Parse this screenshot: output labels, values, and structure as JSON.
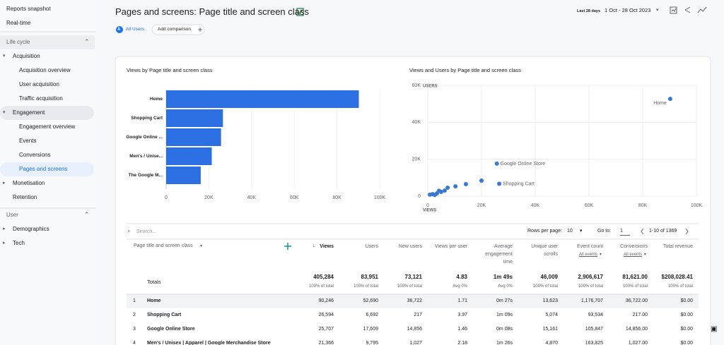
{
  "sidebar": {
    "items": [
      "Reports snapshot",
      "Real-time",
      "Life cycle",
      "Acquisition",
      "Acquisition overview",
      "User acquisition",
      "Traffic acquisition",
      "Engagement",
      "Engagement overview",
      "Events",
      "Conversions",
      "Pages and screens",
      "Monetisation",
      "Retention",
      "User",
      "Demographics",
      "Tech"
    ]
  },
  "header": {
    "title": "Pages and screens: Page title and screen class",
    "range_label": "Last 28 days",
    "range": "1 Oct - 28 Oct 2023",
    "segment_avatar": "A",
    "segment": "All Users",
    "add_comparison": "Add comparison"
  },
  "chart_data": [
    {
      "type": "bar",
      "title": "Views by Page title and screen class",
      "categories": [
        "Home",
        "Shopping Cart",
        "Google Online ...",
        "Men's / Unise...",
        "The Google M..."
      ],
      "values": [
        90246,
        26594,
        25707,
        21366,
        16200
      ],
      "color": "#2b6fe3",
      "xlim": [
        0,
        100000
      ],
      "xticks": [
        0,
        {
          "value": 20000,
          "label": "20K"
        },
        {
          "value": 40000,
          "label": "40K"
        },
        {
          "value": 60000,
          "label": "60K"
        },
        {
          "value": 80000,
          "label": "80K"
        },
        {
          "value": 100000,
          "label": "100K"
        }
      ],
      "grid": true
    },
    {
      "type": "scatter",
      "title": "Views and Users by Page title and screen class",
      "x_label": "VIEWS",
      "y_label": "USERS",
      "x": [
        90246,
        25707,
        26594,
        20000,
        14200,
        10300,
        7400,
        6300,
        5000,
        3400,
        1800,
        800,
        4200,
        2600
      ],
      "values": [
        52690,
        17609,
        6692,
        8400,
        6500,
        5300,
        4600,
        3000,
        2300,
        1500,
        1100,
        800,
        2900,
        600
      ],
      "labels": [
        "Home",
        "Google Online Store",
        "Shopping Cart",
        null,
        null,
        null,
        null,
        null,
        null,
        null,
        null,
        null,
        null,
        null
      ],
      "color": "#3a78d6",
      "xlim": [
        0,
        100000
      ],
      "ylim": [
        0,
        60000
      ],
      "xticks": [
        0,
        {
          "value": 20000,
          "label": "20K"
        },
        {
          "value": 40000,
          "label": "40K"
        },
        {
          "value": 60000,
          "label": "60K"
        },
        {
          "value": 80000,
          "label": "80K"
        },
        {
          "value": 100000,
          "label": "100K"
        }
      ],
      "yticks": [
        0,
        {
          "value": 20000,
          "label": "20K"
        },
        {
          "value": 40000,
          "label": "40K"
        },
        {
          "value": 60000,
          "label": "60K"
        }
      ],
      "grid": true
    }
  ],
  "table": {
    "search": "Search...",
    "rows_per_page_label": "Rows per page:",
    "rows_per_page": "10",
    "goto_label": "Go to:",
    "goto": "1",
    "range": "1-10 of 1369",
    "columns": [
      {
        "name": "Page title and screen class"
      },
      {
        "name": "Views"
      },
      {
        "name": "Users"
      },
      {
        "name": "New users"
      },
      {
        "name": "Views per user"
      },
      {
        "name": "Average engagement time"
      },
      {
        "name": "Unique user scrolls"
      },
      {
        "name": "Event count",
        "filter": "All events"
      },
      {
        "name": "Conversions",
        "filter": "All events"
      },
      {
        "name": "Total revenue"
      }
    ],
    "totals": {
      "label": "Totals",
      "cells": [
        {
          "value": "405,284",
          "sub": "100% of total"
        },
        {
          "value": "83,951",
          "sub": "100% of total"
        },
        {
          "value": "73,121",
          "sub": "100% of total"
        },
        {
          "value": "4.83",
          "sub": "Avg 0%"
        },
        {
          "value": "1m 49s",
          "sub": "Avg 0%"
        },
        {
          "value": "46,009",
          "sub": "100% of total"
        },
        {
          "value": "2,906,617",
          "sub": "100% of total"
        },
        {
          "value": "81,621.00",
          "sub": "100% of total"
        },
        {
          "value": "$208,028.41",
          "sub": "100% of total"
        }
      ]
    },
    "rows": [
      [
        "1",
        "Home",
        "90,246",
        "52,690",
        "36,722",
        "1.71",
        "0m 27s",
        "13,623",
        "1,176,707",
        "36,722.00",
        "$0.00"
      ],
      [
        "2",
        "Shopping Cart",
        "26,594",
        "6,692",
        "217",
        "3.97",
        "1m 09s",
        "5,074",
        "93,534",
        "217.00",
        "$0.00"
      ],
      [
        "3",
        "Google Online Store",
        "25,707",
        "17,609",
        "14,856",
        "1.46",
        "0m 08s",
        "15,161",
        "105,847",
        "14,856.00",
        "$0.00"
      ],
      [
        "4",
        "Men's / Unisex | Apparel | Google Merchandise Store",
        "21,366",
        "9,795",
        "1,027",
        "2.18",
        "1m 26s",
        "4,870",
        "163,825",
        "1,027.00",
        "$0.00"
      ]
    ]
  }
}
